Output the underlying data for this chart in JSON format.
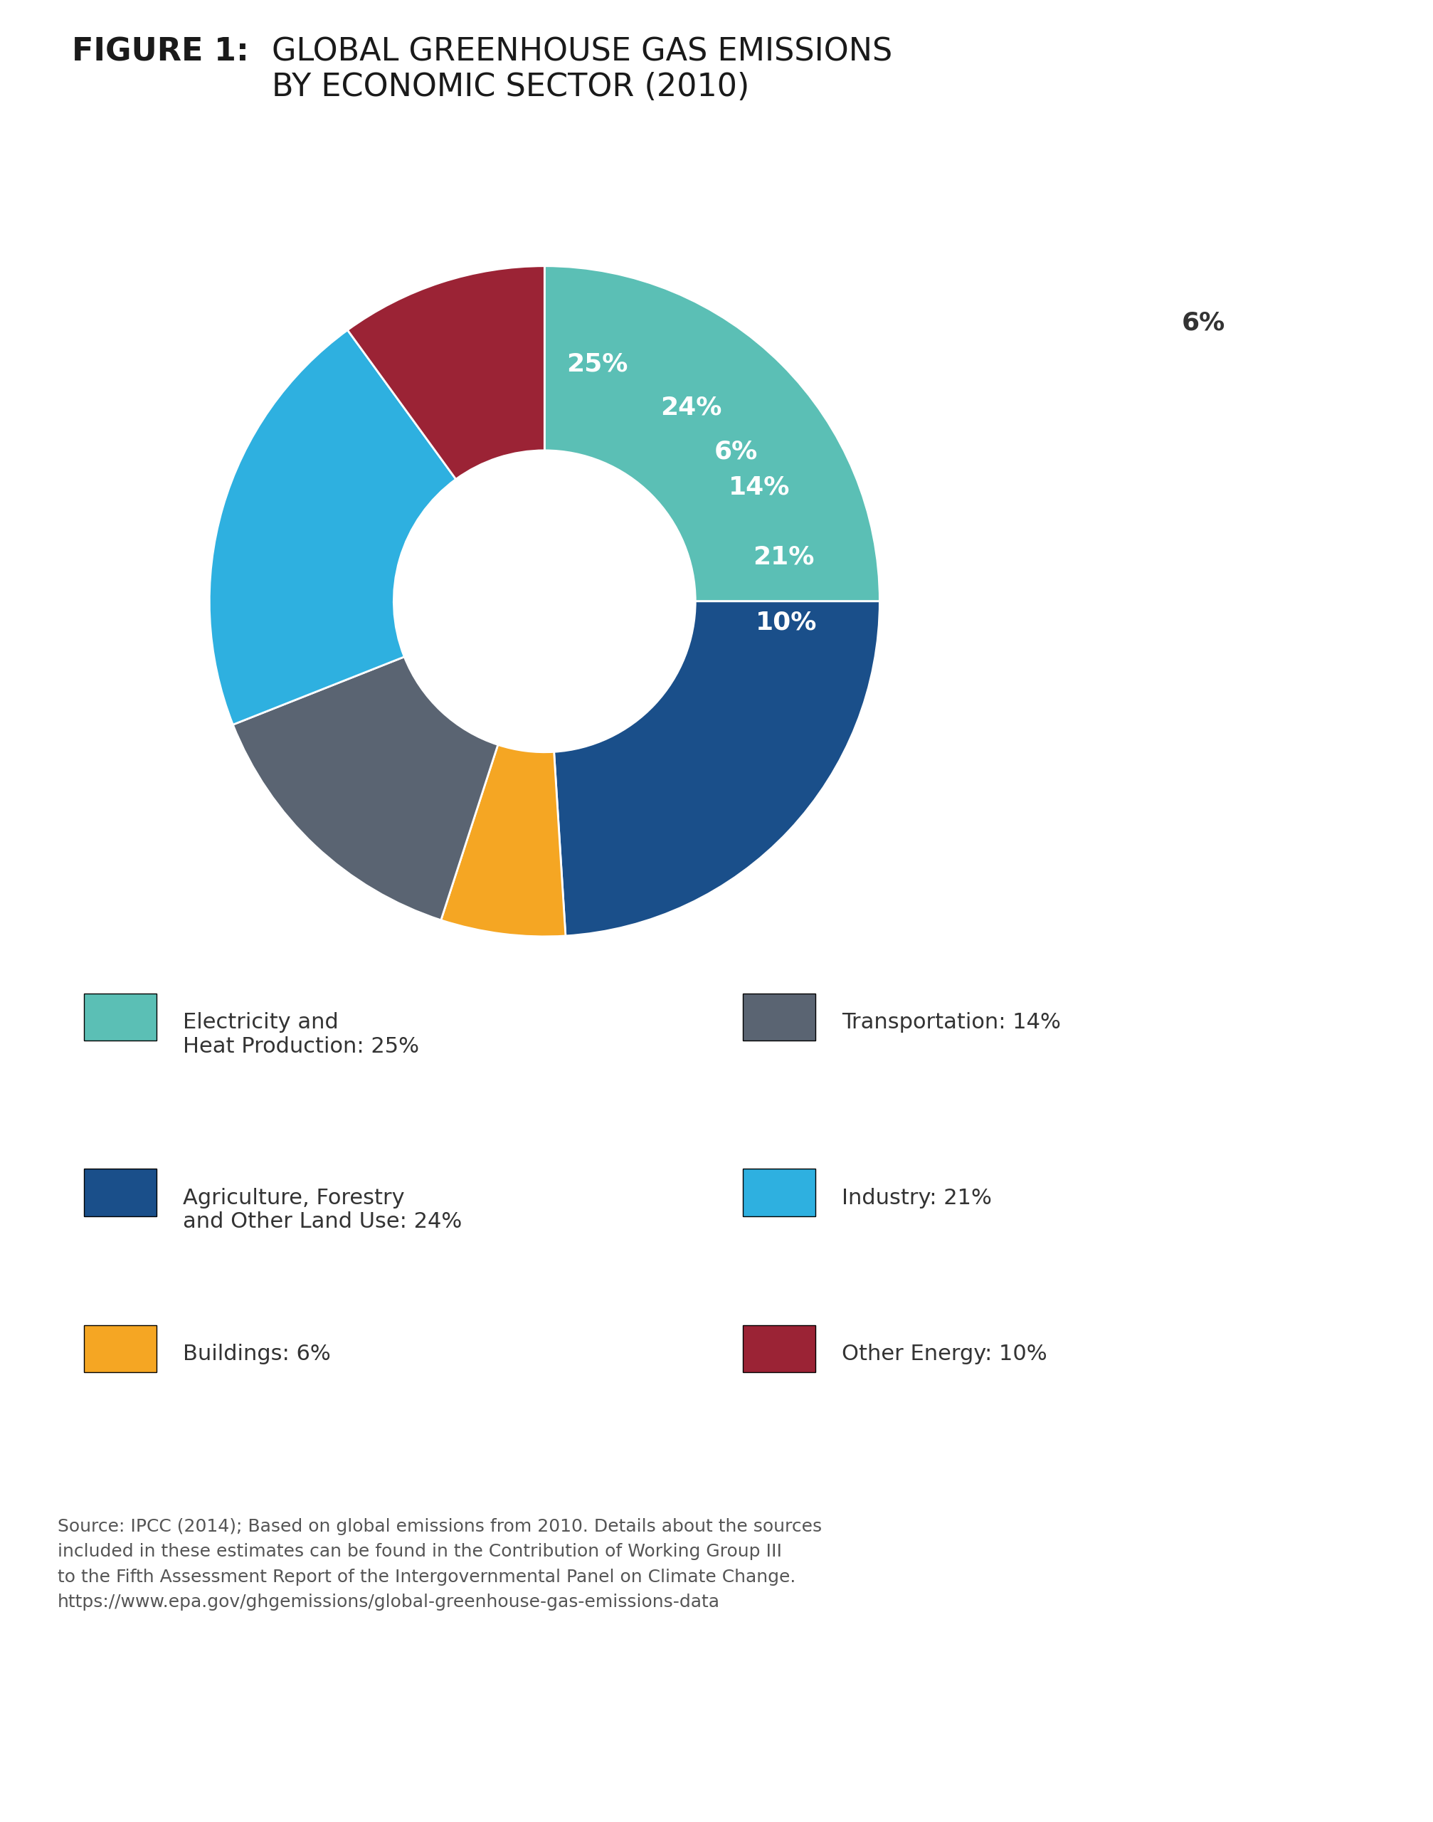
{
  "title_bold": "FIGURE 1:",
  "title_regular": " GLOBAL GREENHOUSE GAS EMISSIONS\nBY ECONOMIC SECTOR (2010)",
  "slices": [
    25,
    24,
    6,
    14,
    21,
    10
  ],
  "labels": [
    "25%",
    "24%",
    "6%",
    "14%",
    "21%",
    "10%"
  ],
  "colors": [
    "#5bbfb5",
    "#1a4f8a",
    "#f5a623",
    "#5a6472",
    "#2eb0e0",
    "#9b2335"
  ],
  "start_angle": 90,
  "legend_items": [
    {
      "color": "#5bbfb5",
      "label_normal": "Electricity and\nHeat Production: ",
      "label_bold": "25%"
    },
    {
      "color": "#1a4f8a",
      "label_normal": "Agriculture, Forestry\nand Other Land Use: ",
      "label_bold": "24%"
    },
    {
      "color": "#f5a623",
      "label_normal": "Buildings: ",
      "label_bold": "6%"
    },
    {
      "color": "#5a6472",
      "label_normal": "Transportation: ",
      "label_bold": "14%"
    },
    {
      "color": "#2eb0e0",
      "label_normal": "Industry: ",
      "label_bold": "21%"
    },
    {
      "color": "#9b2335",
      "label_normal": "Other Energy: ",
      "label_bold": "10%"
    }
  ],
  "source_text_1": "Source: ",
  "source_link_1": "IPCC (2014)",
  "source_text_2": "; Based on global emissions from 2010. Details about the sources\nincluded in these estimates can be found in the ",
  "source_link_2": "Contribution of Working Group III\nto the Fifth Assessment Report of the Intergovernmental Panel on Climate Change.",
  "source_link_3": "\nhttps://www.epa.gov/ghgemissions/global-greenhouse-gas-emissions-data",
  "background_color": "#ffffff",
  "text_color": "#333333",
  "wedge_text_color": "#ffffff"
}
